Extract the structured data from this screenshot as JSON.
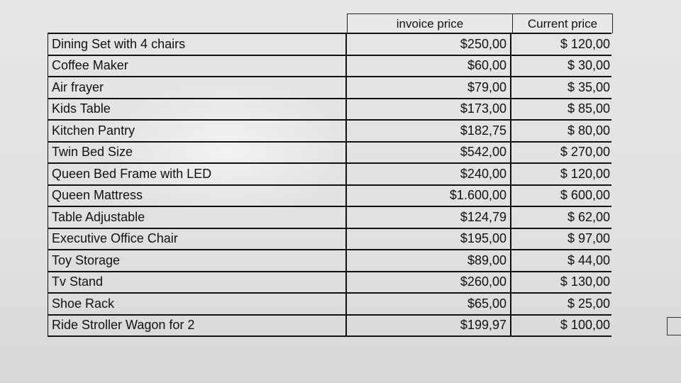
{
  "headers": {
    "invoice": "invoice price",
    "current": "Current price"
  },
  "rows": [
    {
      "item": "Dining Set with 4 chairs",
      "invoice": "$250,00",
      "current": "$ 120,00"
    },
    {
      "item": "Coffee Maker",
      "invoice": "$60,00",
      "current": "$ 30,00"
    },
    {
      "item": "Air frayer",
      "invoice": "$79,00",
      "current": "$ 35,00"
    },
    {
      "item": "Kids Table",
      "invoice": "$173,00",
      "current": "$ 85,00"
    },
    {
      "item": "Kitchen Pantry",
      "invoice": "$182,75",
      "current": "$ 80,00"
    },
    {
      "item": "Twin Bed Size",
      "invoice": "$542,00",
      "current": "$ 270,00"
    },
    {
      "item": "Queen Bed Frame with LED",
      "invoice": "$240,00",
      "current": "$ 120,00"
    },
    {
      "item": "Queen Mattress",
      "invoice": "$1.600,00",
      "current": "$ 600,00"
    },
    {
      "item": "Table Adjustable",
      "invoice": "$124,79",
      "current": "$ 62,00"
    },
    {
      "item": "Executive Office Chair",
      "invoice": "$195,00",
      "current": "$ 97,00"
    },
    {
      "item": "Toy Storage",
      "invoice": "$89,00",
      "current": "$ 44,00"
    },
    {
      "item": "Tv Stand",
      "invoice": "$260,00",
      "current": "$ 130,00"
    },
    {
      "item": "Shoe Rack",
      "invoice": "$65,00",
      "current": "$ 25,00"
    },
    {
      "item": "Ride Stroller Wagon for 2",
      "invoice": "$199,97",
      "current": "$ 100,00"
    }
  ]
}
